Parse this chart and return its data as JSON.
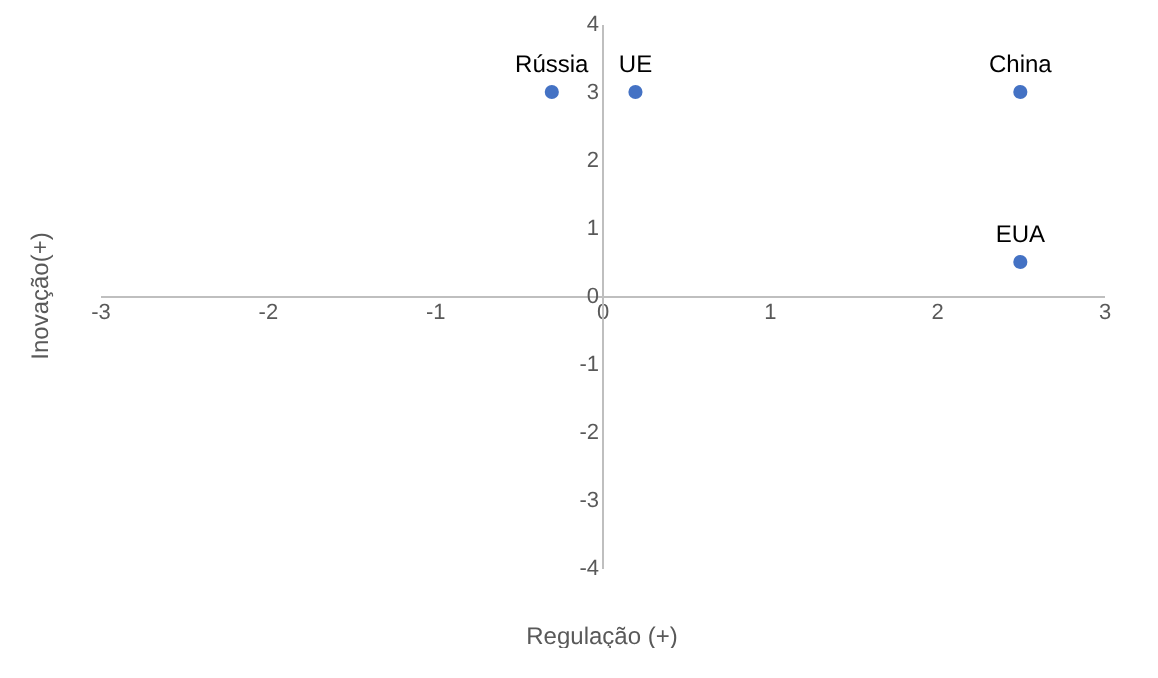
{
  "chart_data": {
    "type": "scatter",
    "xlabel": "Regulação (+)",
    "ylabel": "Inovação(+)",
    "x": [
      -0.3,
      0.2,
      2.5,
      2.5
    ],
    "series": [
      {
        "color": "#4472c4",
        "values": [
          3,
          3,
          3,
          0.5
        ]
      }
    ],
    "annotations": [
      {
        "text": "Rússia",
        "x": -0.3,
        "y": 3
      },
      {
        "text": "UE",
        "x": 0.2,
        "y": 3
      },
      {
        "text": "China",
        "x": 2.5,
        "y": 3
      },
      {
        "text": "EUA",
        "x": 2.5,
        "y": 0.5
      }
    ],
    "xlim": [
      -3,
      3
    ],
    "ylim": [
      -4,
      4
    ],
    "xticks": [
      -3,
      -2,
      -1,
      0,
      1,
      2,
      3
    ],
    "yticks": [
      -4,
      -3,
      -2,
      -1,
      0,
      1,
      2,
      3,
      4
    ],
    "grid": false,
    "marker": "circle"
  }
}
